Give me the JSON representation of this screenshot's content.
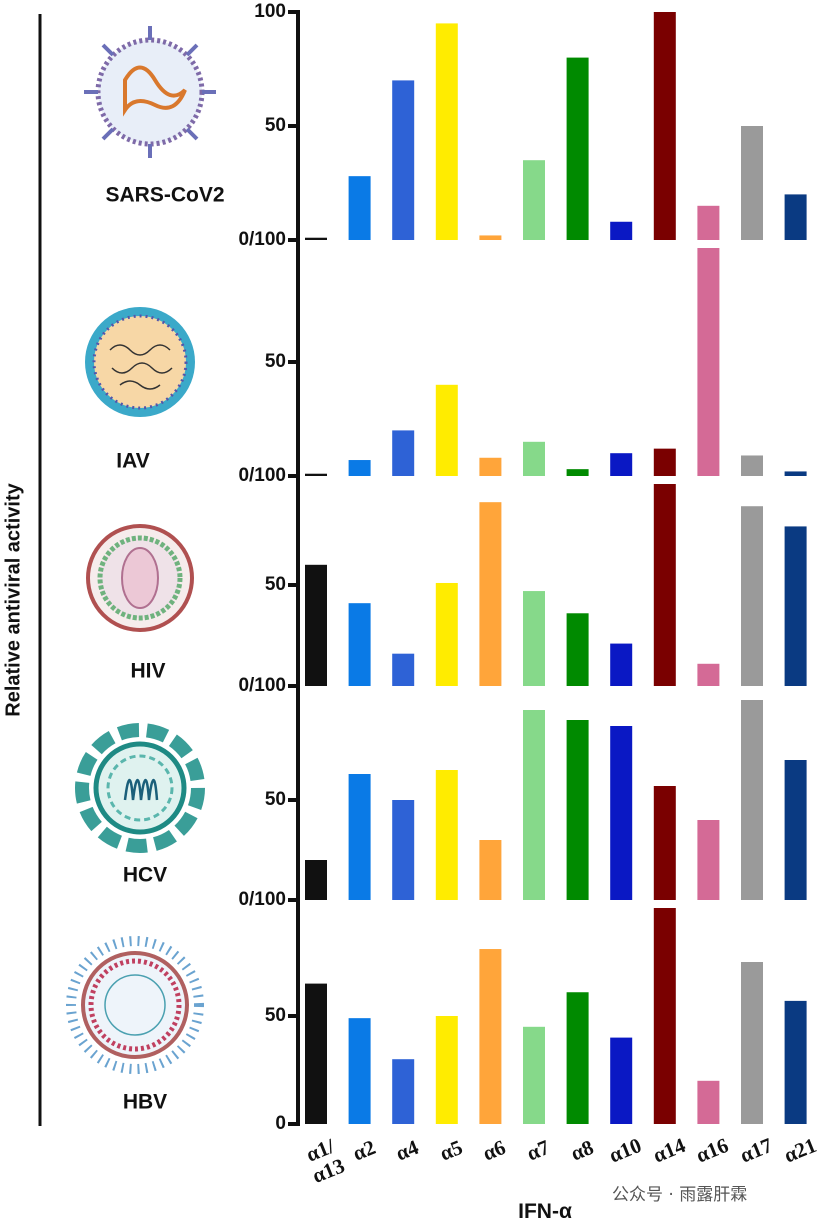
{
  "y_label": "Relative antiviral activity",
  "x_label": "IFN-α",
  "watermark": "公众号 · 雨露肝霖",
  "chart_data": [
    {
      "type": "bar",
      "title": "SARS-CoV2",
      "ylim": [
        0,
        100
      ],
      "yticks": [
        {
          "value": 0,
          "label": "0/100"
        },
        50,
        100
      ],
      "values": [
        1,
        28,
        70,
        95,
        2,
        35,
        80,
        8,
        100,
        15,
        50,
        20
      ]
    },
    {
      "type": "bar",
      "title": "IAV",
      "ylim": [
        0,
        100
      ],
      "yticks": [
        {
          "value": 0,
          "label": "0/100"
        },
        50
      ],
      "values": [
        1,
        7,
        20,
        40,
        8,
        15,
        3,
        10,
        12,
        100,
        9,
        2
      ]
    },
    {
      "type": "bar",
      "title": "HIV",
      "ylim": [
        0,
        100
      ],
      "yticks": [
        {
          "value": 0,
          "label": "0/100"
        },
        50
      ],
      "values": [
        60,
        41,
        16,
        51,
        91,
        47,
        36,
        21,
        100,
        11,
        89,
        79
      ]
    },
    {
      "type": "bar",
      "title": "HCV",
      "ylim": [
        0,
        100
      ],
      "yticks": [
        {
          "value": 0,
          "label": "0/100"
        },
        50
      ],
      "values": [
        20,
        63,
        50,
        65,
        30,
        95,
        90,
        87,
        57,
        40,
        100,
        70
      ]
    },
    {
      "type": "bar",
      "title": "HBV",
      "ylim": [
        0,
        100
      ],
      "yticks": [
        0,
        50
      ],
      "categories": [
        "α1/ α13",
        "α2",
        "α4",
        "α5",
        "α6",
        "α7",
        "α8",
        "α10",
        "α14",
        "α16",
        "α17",
        "α21"
      ],
      "colors": [
        "#111111",
        "#0a7ae6",
        "#2e62d6",
        "#ffec00",
        "#ffa53a",
        "#86d98a",
        "#008a00",
        "#0a18c4",
        "#7a0000",
        "#d46a96",
        "#9a9a9a",
        "#0a3a82"
      ],
      "values": [
        65,
        49,
        30,
        50,
        81,
        45,
        61,
        40,
        100,
        20,
        75,
        57
      ]
    }
  ]
}
